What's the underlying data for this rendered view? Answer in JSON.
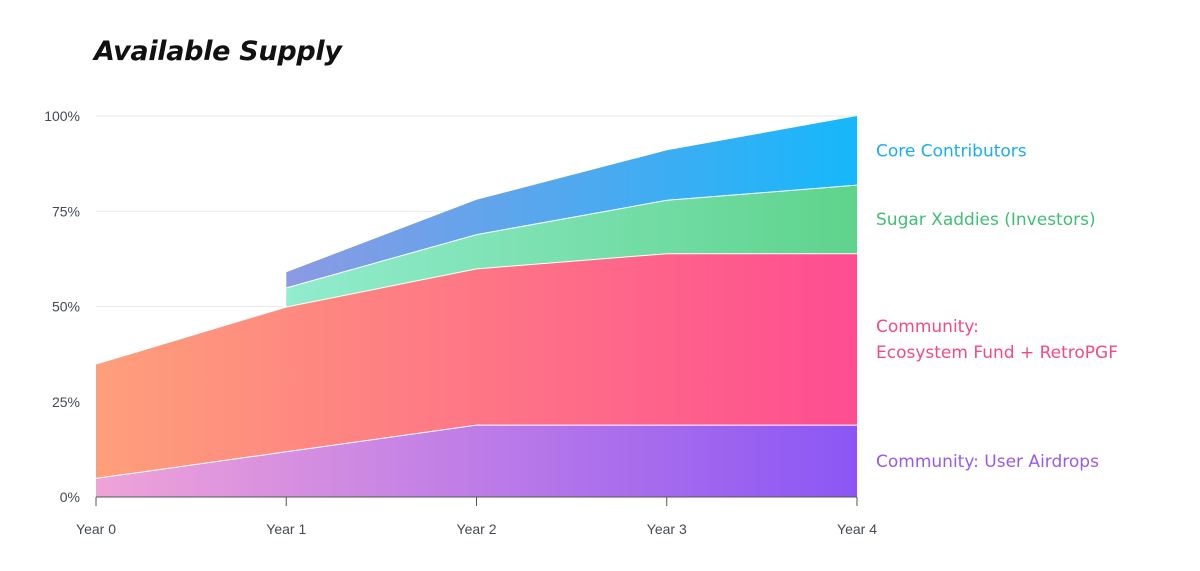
{
  "title": "Available Supply",
  "chart_data": {
    "type": "area",
    "stacked": true,
    "title": "Available Supply",
    "x": [
      "Year 0",
      "Year 1",
      "Year 2",
      "Year 3",
      "Year 4"
    ],
    "y_ticks": [
      "0%",
      "25%",
      "50%",
      "75%",
      "100%"
    ],
    "ylim": [
      0,
      100
    ],
    "grid": "horizontal",
    "legend": "right, inline labels",
    "series": [
      {
        "name": "Community: User Airdrops",
        "values": [
          5,
          12,
          19,
          19,
          19
        ],
        "colors": [
          "#f0a3d8",
          "#8b56f5"
        ],
        "label_color": "#9a5ae8"
      },
      {
        "name_lines": [
          "Community:",
          "Ecosystem Fund + RetroPGF"
        ],
        "values": [
          30,
          38,
          41,
          45,
          45
        ],
        "colors": [
          "#fe9f7a",
          "#fe4d91"
        ],
        "label_color": "#f24b82"
      },
      {
        "name": "Sugar Xaddies (Investors)",
        "values": [
          null,
          5,
          9,
          14,
          18
        ],
        "colors": [
          "#92ecce",
          "#5fd38c"
        ],
        "label_color": "#3fbf74"
      },
      {
        "name": "Core Contributors",
        "values": [
          null,
          4,
          9,
          13,
          18
        ],
        "colors": [
          "#8b9ae3",
          "#16b7fb"
        ],
        "label_color": "#19aef0"
      }
    ]
  }
}
